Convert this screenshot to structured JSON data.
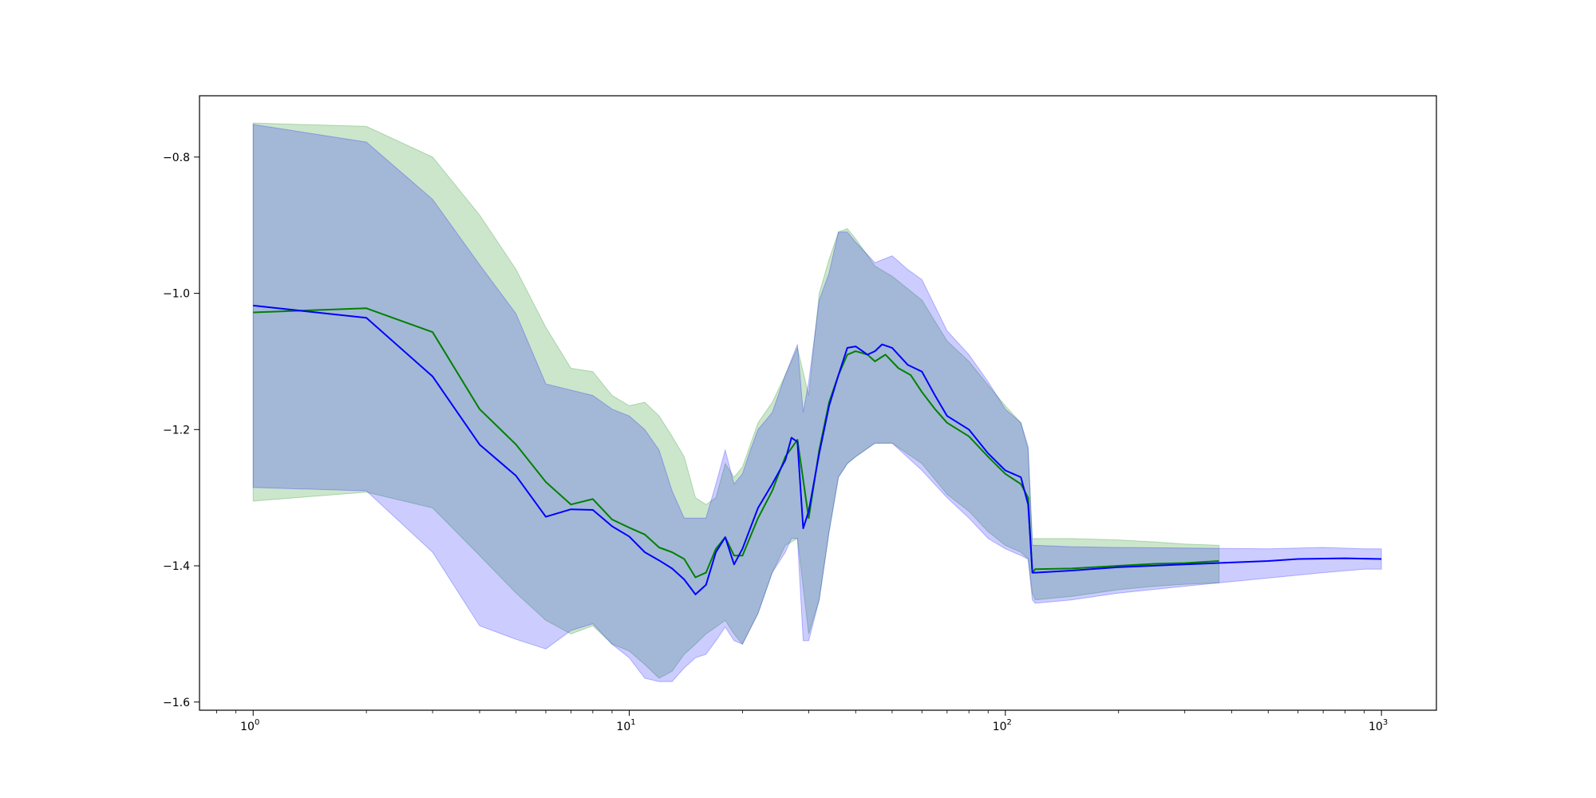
{
  "chart_data": {
    "type": "line",
    "title": "",
    "xlabel": "",
    "ylabel": "",
    "xscale": "log",
    "xlim": [
      0.72,
      1400
    ],
    "ylim": [
      -1.612,
      -0.71
    ],
    "grid": false,
    "legend": "none",
    "x_ticks": [
      {
        "base": "10",
        "exp": "0",
        "value": 1
      },
      {
        "base": "10",
        "exp": "1",
        "value": 10
      },
      {
        "base": "10",
        "exp": "2",
        "value": 100
      },
      {
        "base": "10",
        "exp": "3",
        "value": 1000
      }
    ],
    "y_ticks": [
      {
        "label": "−0.8",
        "value": -0.8
      },
      {
        "label": "−1.0",
        "value": -1.0
      },
      {
        "label": "−1.2",
        "value": -1.2
      },
      {
        "label": "−1.4",
        "value": -1.4
      },
      {
        "label": "−1.6",
        "value": -1.6
      }
    ],
    "series": [
      {
        "color": "#008000",
        "band_color": "#008000",
        "band_opacity": 0.2,
        "points": [
          [
            1,
            -1.028
          ],
          [
            2,
            -1.022
          ],
          [
            3,
            -1.057
          ],
          [
            4,
            -1.17
          ],
          [
            5,
            -1.222
          ],
          [
            6,
            -1.277
          ],
          [
            7,
            -1.31
          ],
          [
            8,
            -1.302
          ],
          [
            9,
            -1.332
          ],
          [
            10,
            -1.344
          ],
          [
            11,
            -1.354
          ],
          [
            12,
            -1.373
          ],
          [
            13,
            -1.38
          ],
          [
            14,
            -1.39
          ],
          [
            15,
            -1.417
          ],
          [
            16,
            -1.41
          ],
          [
            17,
            -1.375
          ],
          [
            18,
            -1.358
          ],
          [
            19,
            -1.385
          ],
          [
            20,
            -1.385
          ],
          [
            22,
            -1.33
          ],
          [
            24,
            -1.29
          ],
          [
            26,
            -1.24
          ],
          [
            28,
            -1.215
          ],
          [
            30,
            -1.33
          ],
          [
            32,
            -1.23
          ],
          [
            34,
            -1.16
          ],
          [
            36,
            -1.12
          ],
          [
            38,
            -1.09
          ],
          [
            40,
            -1.085
          ],
          [
            43,
            -1.09
          ],
          [
            45,
            -1.1
          ],
          [
            48,
            -1.09
          ],
          [
            52,
            -1.11
          ],
          [
            56,
            -1.12
          ],
          [
            60,
            -1.145
          ],
          [
            65,
            -1.17
          ],
          [
            70,
            -1.19
          ],
          [
            80,
            -1.21
          ],
          [
            90,
            -1.24
          ],
          [
            100,
            -1.265
          ],
          [
            110,
            -1.28
          ],
          [
            115,
            -1.3
          ],
          [
            118,
            -1.41
          ],
          [
            120,
            -1.405
          ],
          [
            150,
            -1.404
          ],
          [
            200,
            -1.4
          ],
          [
            250,
            -1.397
          ],
          [
            300,
            -1.396
          ],
          [
            370,
            -1.393
          ]
        ],
        "upper": [
          [
            1,
            -0.75
          ],
          [
            2,
            -0.755
          ],
          [
            3,
            -0.8
          ],
          [
            4,
            -0.885
          ],
          [
            5,
            -0.965
          ],
          [
            6,
            -1.05
          ],
          [
            7,
            -1.11
          ],
          [
            8,
            -1.115
          ],
          [
            9,
            -1.15
          ],
          [
            10,
            -1.165
          ],
          [
            11,
            -1.16
          ],
          [
            12,
            -1.18
          ],
          [
            13,
            -1.21
          ],
          [
            14,
            -1.24
          ],
          [
            15,
            -1.3
          ],
          [
            16,
            -1.31
          ],
          [
            17,
            -1.3
          ],
          [
            18,
            -1.25
          ],
          [
            19,
            -1.27
          ],
          [
            20,
            -1.255
          ],
          [
            22,
            -1.19
          ],
          [
            24,
            -1.16
          ],
          [
            26,
            -1.12
          ],
          [
            28,
            -1.08
          ],
          [
            30,
            -1.15
          ],
          [
            32,
            -1.0
          ],
          [
            34,
            -0.95
          ],
          [
            36,
            -0.91
          ],
          [
            38,
            -0.905
          ],
          [
            40,
            -0.92
          ],
          [
            45,
            -0.96
          ],
          [
            50,
            -0.975
          ],
          [
            60,
            -1.01
          ],
          [
            70,
            -1.07
          ],
          [
            80,
            -1.1
          ],
          [
            90,
            -1.135
          ],
          [
            100,
            -1.165
          ],
          [
            110,
            -1.19
          ],
          [
            115,
            -1.23
          ],
          [
            118,
            -1.36
          ],
          [
            120,
            -1.36
          ],
          [
            150,
            -1.36
          ],
          [
            200,
            -1.362
          ],
          [
            250,
            -1.365
          ],
          [
            300,
            -1.368
          ],
          [
            370,
            -1.37
          ]
        ],
        "lower": [
          [
            1,
            -1.305
          ],
          [
            2,
            -1.292
          ],
          [
            3,
            -1.315
          ],
          [
            4,
            -1.385
          ],
          [
            5,
            -1.44
          ],
          [
            6,
            -1.48
          ],
          [
            7,
            -1.5
          ],
          [
            8,
            -1.488
          ],
          [
            9,
            -1.515
          ],
          [
            10,
            -1.525
          ],
          [
            11,
            -1.545
          ],
          [
            12,
            -1.565
          ],
          [
            13,
            -1.555
          ],
          [
            14,
            -1.53
          ],
          [
            15,
            -1.515
          ],
          [
            16,
            -1.5
          ],
          [
            17,
            -1.49
          ],
          [
            18,
            -1.48
          ],
          [
            19,
            -1.5
          ],
          [
            20,
            -1.515
          ],
          [
            22,
            -1.47
          ],
          [
            24,
            -1.41
          ],
          [
            26,
            -1.37
          ],
          [
            28,
            -1.36
          ],
          [
            30,
            -1.5
          ],
          [
            32,
            -1.45
          ],
          [
            34,
            -1.35
          ],
          [
            36,
            -1.27
          ],
          [
            38,
            -1.25
          ],
          [
            40,
            -1.24
          ],
          [
            45,
            -1.22
          ],
          [
            50,
            -1.22
          ],
          [
            60,
            -1.25
          ],
          [
            70,
            -1.295
          ],
          [
            80,
            -1.32
          ],
          [
            90,
            -1.35
          ],
          [
            100,
            -1.37
          ],
          [
            110,
            -1.38
          ],
          [
            115,
            -1.39
          ],
          [
            118,
            -1.44
          ],
          [
            120,
            -1.45
          ],
          [
            150,
            -1.445
          ],
          [
            200,
            -1.435
          ],
          [
            250,
            -1.43
          ],
          [
            300,
            -1.427
          ],
          [
            370,
            -1.425
          ]
        ]
      },
      {
        "color": "#0000ff",
        "band_color": "#0000ff",
        "band_opacity": 0.2,
        "points": [
          [
            1,
            -1.018
          ],
          [
            2,
            -1.036
          ],
          [
            3,
            -1.122
          ],
          [
            4,
            -1.222
          ],
          [
            5,
            -1.268
          ],
          [
            6,
            -1.328
          ],
          [
            7,
            -1.317
          ],
          [
            8,
            -1.318
          ],
          [
            9,
            -1.342
          ],
          [
            10,
            -1.357
          ],
          [
            11,
            -1.38
          ],
          [
            12,
            -1.392
          ],
          [
            13,
            -1.404
          ],
          [
            14,
            -1.42
          ],
          [
            15,
            -1.442
          ],
          [
            16,
            -1.428
          ],
          [
            17,
            -1.38
          ],
          [
            18,
            -1.358
          ],
          [
            19,
            -1.398
          ],
          [
            20,
            -1.375
          ],
          [
            22,
            -1.315
          ],
          [
            24,
            -1.28
          ],
          [
            26,
            -1.245
          ],
          [
            27,
            -1.212
          ],
          [
            28,
            -1.218
          ],
          [
            29,
            -1.345
          ],
          [
            30,
            -1.32
          ],
          [
            32,
            -1.235
          ],
          [
            34,
            -1.165
          ],
          [
            36,
            -1.12
          ],
          [
            38,
            -1.08
          ],
          [
            40,
            -1.078
          ],
          [
            43,
            -1.09
          ],
          [
            45,
            -1.085
          ],
          [
            47,
            -1.075
          ],
          [
            50,
            -1.08
          ],
          [
            55,
            -1.105
          ],
          [
            60,
            -1.115
          ],
          [
            65,
            -1.15
          ],
          [
            70,
            -1.18
          ],
          [
            80,
            -1.2
          ],
          [
            90,
            -1.235
          ],
          [
            100,
            -1.26
          ],
          [
            110,
            -1.27
          ],
          [
            115,
            -1.31
          ],
          [
            118,
            -1.41
          ],
          [
            120,
            -1.41
          ],
          [
            150,
            -1.407
          ],
          [
            200,
            -1.402
          ],
          [
            300,
            -1.398
          ],
          [
            500,
            -1.393
          ],
          [
            600,
            -1.39
          ],
          [
            800,
            -1.389
          ],
          [
            1000,
            -1.39
          ]
        ],
        "upper": [
          [
            1,
            -0.752
          ],
          [
            2,
            -0.778
          ],
          [
            3,
            -0.862
          ],
          [
            4,
            -0.958
          ],
          [
            5,
            -1.03
          ],
          [
            6,
            -1.133
          ],
          [
            7,
            -1.142
          ],
          [
            8,
            -1.15
          ],
          [
            9,
            -1.17
          ],
          [
            10,
            -1.18
          ],
          [
            11,
            -1.2
          ],
          [
            12,
            -1.23
          ],
          [
            13,
            -1.29
          ],
          [
            14,
            -1.33
          ],
          [
            15,
            -1.33
          ],
          [
            16,
            -1.33
          ],
          [
            17,
            -1.28
          ],
          [
            18,
            -1.23
          ],
          [
            19,
            -1.28
          ],
          [
            20,
            -1.265
          ],
          [
            21,
            -1.23
          ],
          [
            22,
            -1.2
          ],
          [
            24,
            -1.175
          ],
          [
            26,
            -1.12
          ],
          [
            28,
            -1.075
          ],
          [
            29,
            -1.175
          ],
          [
            30,
            -1.13
          ],
          [
            32,
            -1.01
          ],
          [
            34,
            -0.97
          ],
          [
            36,
            -0.91
          ],
          [
            38,
            -0.91
          ],
          [
            40,
            -0.925
          ],
          [
            45,
            -0.955
          ],
          [
            50,
            -0.945
          ],
          [
            55,
            -0.965
          ],
          [
            60,
            -0.98
          ],
          [
            70,
            -1.055
          ],
          [
            80,
            -1.09
          ],
          [
            90,
            -1.13
          ],
          [
            100,
            -1.17
          ],
          [
            110,
            -1.19
          ],
          [
            115,
            -1.225
          ],
          [
            118,
            -1.37
          ],
          [
            120,
            -1.37
          ],
          [
            150,
            -1.372
          ],
          [
            200,
            -1.373
          ],
          [
            300,
            -1.374
          ],
          [
            500,
            -1.375
          ],
          [
            700,
            -1.373
          ],
          [
            900,
            -1.375
          ],
          [
            1000,
            -1.375
          ]
        ],
        "lower": [
          [
            1,
            -1.285
          ],
          [
            2,
            -1.29
          ],
          [
            3,
            -1.38
          ],
          [
            4,
            -1.488
          ],
          [
            5,
            -1.508
          ],
          [
            6,
            -1.522
          ],
          [
            7,
            -1.495
          ],
          [
            8,
            -1.485
          ],
          [
            9,
            -1.515
          ],
          [
            10,
            -1.535
          ],
          [
            11,
            -1.565
          ],
          [
            12,
            -1.57
          ],
          [
            13,
            -1.57
          ],
          [
            14,
            -1.55
          ],
          [
            15,
            -1.535
          ],
          [
            16,
            -1.53
          ],
          [
            17,
            -1.51
          ],
          [
            18,
            -1.49
          ],
          [
            19,
            -1.51
          ],
          [
            20,
            -1.515
          ],
          [
            22,
            -1.47
          ],
          [
            24,
            -1.41
          ],
          [
            26,
            -1.38
          ],
          [
            27,
            -1.36
          ],
          [
            28,
            -1.36
          ],
          [
            29,
            -1.51
          ],
          [
            30,
            -1.51
          ],
          [
            32,
            -1.45
          ],
          [
            34,
            -1.35
          ],
          [
            36,
            -1.27
          ],
          [
            38,
            -1.25
          ],
          [
            40,
            -1.24
          ],
          [
            45,
            -1.22
          ],
          [
            50,
            -1.22
          ],
          [
            60,
            -1.26
          ],
          [
            70,
            -1.3
          ],
          [
            80,
            -1.33
          ],
          [
            90,
            -1.36
          ],
          [
            100,
            -1.375
          ],
          [
            110,
            -1.385
          ],
          [
            115,
            -1.39
          ],
          [
            118,
            -1.45
          ],
          [
            120,
            -1.455
          ],
          [
            150,
            -1.45
          ],
          [
            200,
            -1.44
          ],
          [
            300,
            -1.43
          ],
          [
            500,
            -1.418
          ],
          [
            700,
            -1.41
          ],
          [
            900,
            -1.405
          ],
          [
            1000,
            -1.405
          ]
        ]
      }
    ]
  }
}
